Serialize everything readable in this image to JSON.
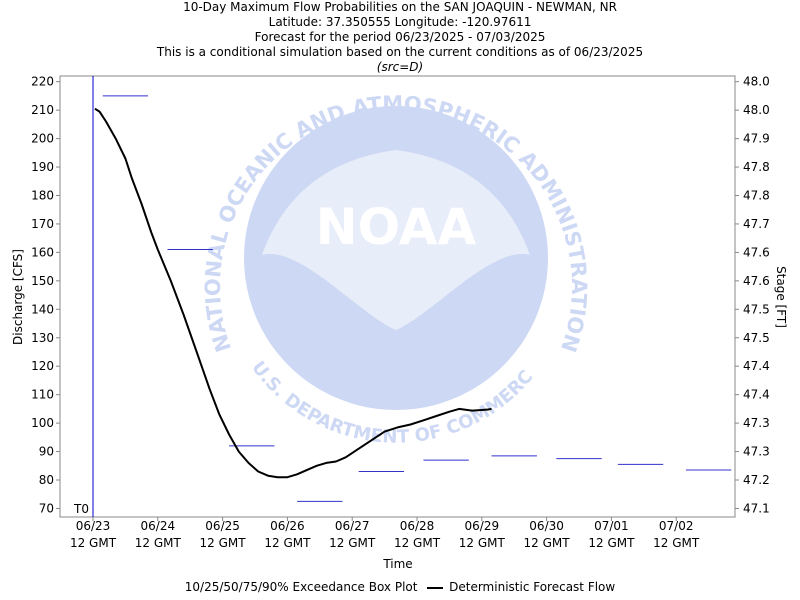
{
  "header": {
    "title": "10-Day Maximum Flow Probabilities on the SAN JOAQUIN - NEWMAN, NR",
    "location": "Latitude: 37.350555 Longitude: -120.97611",
    "period": "Forecast for the period 06/23/2025 - 07/03/2025",
    "note": "This is a conditional simulation based on the current conditions as of 06/23/2025",
    "source": "(src=D)"
  },
  "watermark": {
    "logo_text": "NOAA",
    "ring_top": "NATIONAL OCEANIC AND ATMOSPHERIC ADMINISTRATION",
    "ring_bottom": "U.S. DEPARTMENT OF COMMERCE"
  },
  "legend": {
    "box_plot": "10/25/50/75/90% Exceedance Box Plot",
    "deterministic": "Deterministic Forecast Flow"
  },
  "colors": {
    "box": "#3333cc",
    "line": "#000000",
    "t0": "#0000cc",
    "watermark": "#cdd8f4"
  },
  "chart_data": {
    "type": "line",
    "xlabel": "Time",
    "ylabel": "Discharge [CFS]",
    "ylabel_right": "Stage [FT]",
    "ylim": [
      67,
      222
    ],
    "yticks": [
      70,
      80,
      90,
      100,
      110,
      120,
      130,
      140,
      150,
      160,
      170,
      180,
      190,
      200,
      210,
      220
    ],
    "right_ticks": [
      "47.1",
      "47.2",
      "47.3",
      "47.3",
      "47.4",
      "47.4",
      "47.5",
      "47.5",
      "47.6",
      "47.6",
      "47.7",
      "47.8",
      "47.8",
      "47.9",
      "48.0",
      "48.0"
    ],
    "x_ticks": [
      {
        "day": 0,
        "date": "06/23",
        "time": "12 GMT"
      },
      {
        "day": 1,
        "date": "06/24",
        "time": "12 GMT"
      },
      {
        "day": 2,
        "date": "06/25",
        "time": "12 GMT"
      },
      {
        "day": 3,
        "date": "06/26",
        "time": "12 GMT"
      },
      {
        "day": 4,
        "date": "06/27",
        "time": "12 GMT"
      },
      {
        "day": 5,
        "date": "06/28",
        "time": "12 GMT"
      },
      {
        "day": 6,
        "date": "06/29",
        "time": "12 GMT"
      },
      {
        "day": 7,
        "date": "06/30",
        "time": "12 GMT"
      },
      {
        "day": 8,
        "date": "07/01",
        "time": "12 GMT"
      },
      {
        "day": 9,
        "date": "07/02",
        "time": "12 GMT"
      }
    ],
    "t0_label": "T0",
    "t0_day": 0,
    "deterministic": [
      [
        0.03,
        210.5
      ],
      [
        0.1,
        209.5
      ],
      [
        0.2,
        206
      ],
      [
        0.35,
        200
      ],
      [
        0.5,
        193
      ],
      [
        0.6,
        186
      ],
      [
        0.75,
        177
      ],
      [
        0.9,
        167
      ],
      [
        1.0,
        161
      ],
      [
        1.2,
        150
      ],
      [
        1.4,
        138
      ],
      [
        1.6,
        125
      ],
      [
        1.8,
        112
      ],
      [
        1.95,
        103
      ],
      [
        2.1,
        96
      ],
      [
        2.25,
        90
      ],
      [
        2.4,
        86
      ],
      [
        2.55,
        83
      ],
      [
        2.7,
        81.5
      ],
      [
        2.85,
        81
      ],
      [
        3.0,
        81
      ],
      [
        3.15,
        82
      ],
      [
        3.3,
        83.5
      ],
      [
        3.45,
        85
      ],
      [
        3.6,
        86
      ],
      [
        3.75,
        86.5
      ],
      [
        3.9,
        88
      ],
      [
        4.1,
        91
      ],
      [
        4.3,
        94
      ],
      [
        4.5,
        97
      ],
      [
        4.7,
        98.5
      ],
      [
        4.9,
        99.5
      ],
      [
        5.1,
        101
      ],
      [
        5.3,
        102.5
      ],
      [
        5.5,
        104
      ],
      [
        5.65,
        105
      ],
      [
        5.75,
        104.7
      ],
      [
        5.85,
        104.4
      ],
      [
        6.0,
        104.6
      ],
      [
        6.1,
        104.8
      ],
      [
        6.15,
        105
      ]
    ],
    "exceedance_medians": [
      {
        "start": 0.15,
        "end": 0.85,
        "value": 215
      },
      {
        "start": 1.15,
        "end": 1.85,
        "value": 161
      },
      {
        "start": 2.1,
        "end": 2.8,
        "value": 92
      },
      {
        "start": 3.15,
        "end": 3.85,
        "value": 72.5
      },
      {
        "start": 4.1,
        "end": 4.8,
        "value": 83
      },
      {
        "start": 5.1,
        "end": 5.8,
        "value": 87
      },
      {
        "start": 6.15,
        "end": 6.85,
        "value": 88.5
      },
      {
        "start": 7.15,
        "end": 7.85,
        "value": 87.5
      },
      {
        "start": 8.1,
        "end": 8.8,
        "value": 85.5
      },
      {
        "start": 9.15,
        "end": 9.85,
        "value": 83.5
      }
    ]
  }
}
